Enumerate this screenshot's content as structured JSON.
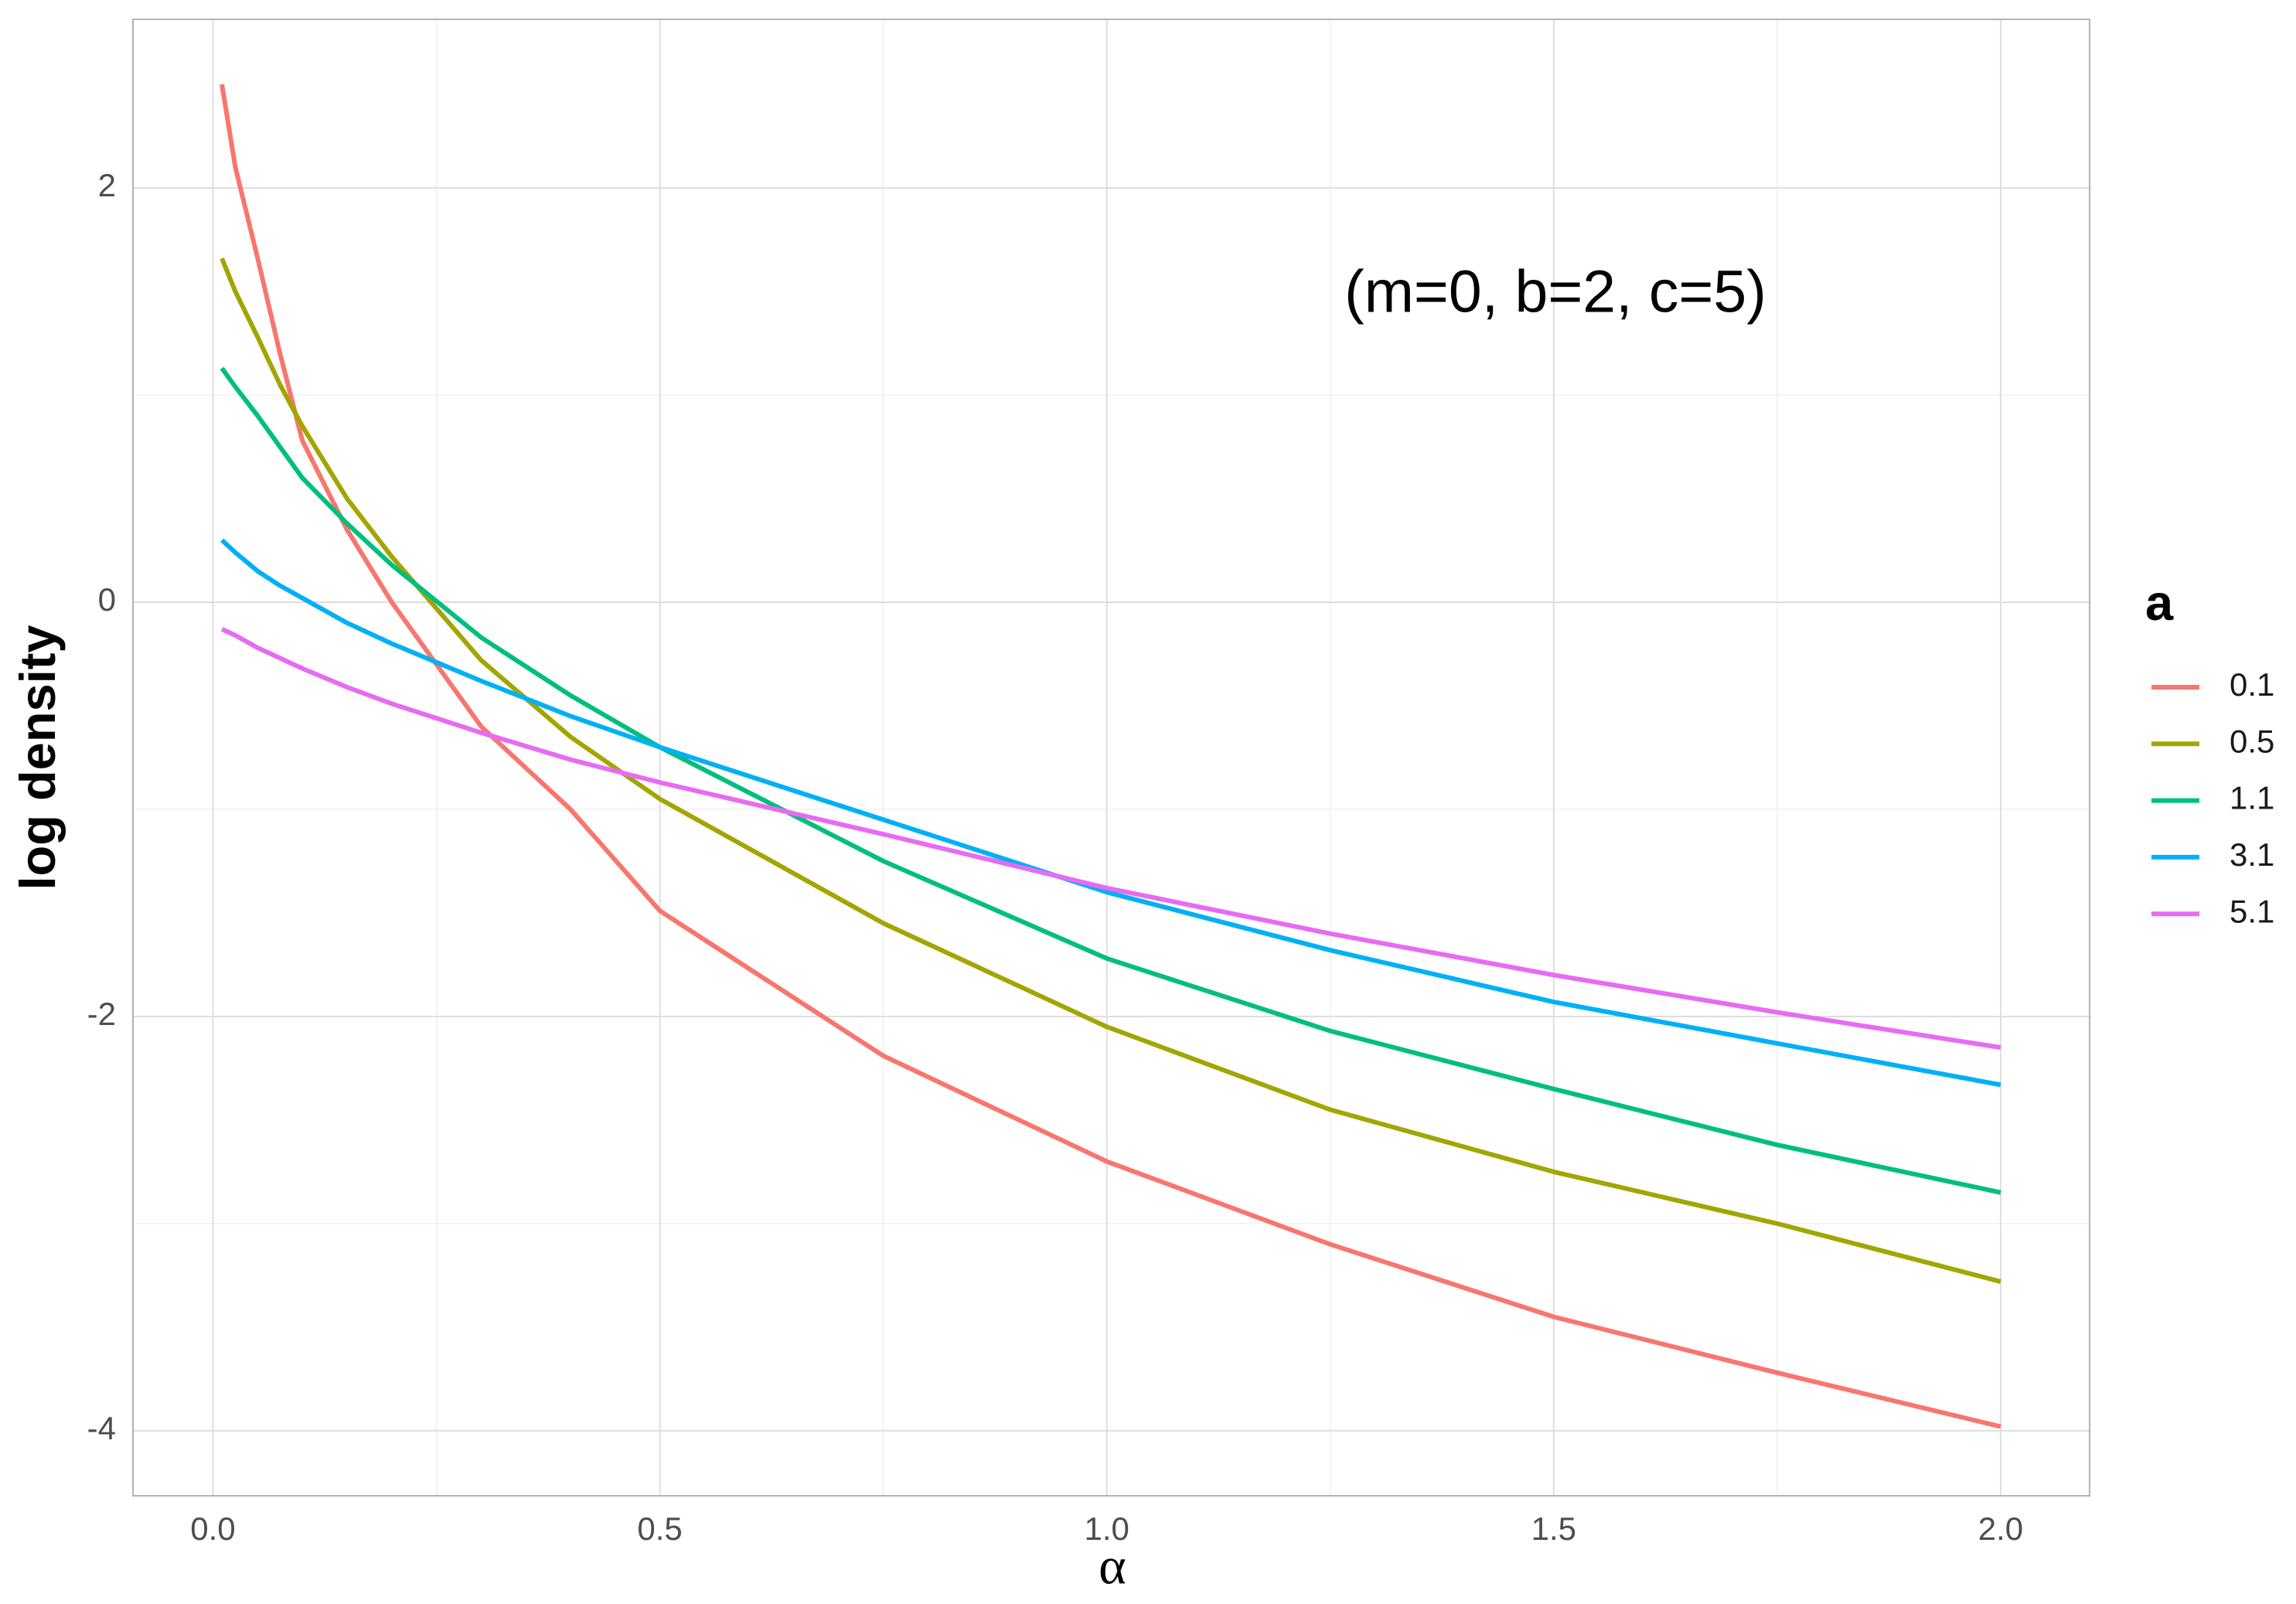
{
  "chart_data": {
    "type": "line",
    "annotation": "(m=0, b=2, c=5)",
    "x_label": "α",
    "y_label": "log density",
    "legend_title": "a",
    "legend_position": "right",
    "grid": true,
    "x": [
      0.01,
      0.025,
      0.05,
      0.075,
      0.1,
      0.15,
      0.2,
      0.3,
      0.4,
      0.5,
      0.75,
      1.0,
      1.25,
      1.5,
      1.75,
      2.0
    ],
    "series": [
      {
        "name": "0.1",
        "color": "#f8766d",
        "values": [
          2.5,
          2.1,
          1.66,
          1.2,
          0.78,
          0.35,
          0.0,
          -0.6,
          -1.0,
          -1.49,
          -2.19,
          -2.7,
          -3.1,
          -3.45,
          -3.72,
          -3.98
        ]
      },
      {
        "name": "0.5",
        "color": "#a3a500",
        "values": [
          1.66,
          1.5,
          1.28,
          1.05,
          0.85,
          0.5,
          0.22,
          -0.28,
          -0.65,
          -0.95,
          -1.55,
          -2.05,
          -2.45,
          -2.75,
          -3.0,
          -3.28
        ]
      },
      {
        "name": "1.1",
        "color": "#00bf7d",
        "values": [
          1.13,
          1.04,
          0.9,
          0.75,
          0.6,
          0.38,
          0.18,
          -0.17,
          -0.45,
          -0.7,
          -1.25,
          -1.72,
          -2.07,
          -2.35,
          -2.62,
          -2.85
        ]
      },
      {
        "name": "3.1",
        "color": "#00b0f6",
        "values": [
          0.3,
          0.24,
          0.15,
          0.08,
          0.02,
          -0.1,
          -0.2,
          -0.38,
          -0.55,
          -0.7,
          -1.05,
          -1.4,
          -1.68,
          -1.93,
          -2.13,
          -2.33
        ]
      },
      {
        "name": "5.1",
        "color": "#e76bf3",
        "values": [
          -0.13,
          -0.16,
          -0.22,
          -0.27,
          -0.32,
          -0.41,
          -0.49,
          -0.63,
          -0.76,
          -0.87,
          -1.12,
          -1.38,
          -1.6,
          -1.8,
          -1.98,
          -2.15
        ]
      }
    ],
    "xlim": [
      -0.0895,
      2.0995
    ],
    "ylim": [
      -4.314,
      2.814
    ],
    "xticks": [
      {
        "value": 0,
        "label": "0.0"
      },
      0.5,
      {
        "value": 1,
        "label": "1.0"
      },
      1.5,
      {
        "value": 2,
        "label": "2.0"
      }
    ],
    "yticks": [
      -4,
      -2,
      0,
      2
    ]
  }
}
